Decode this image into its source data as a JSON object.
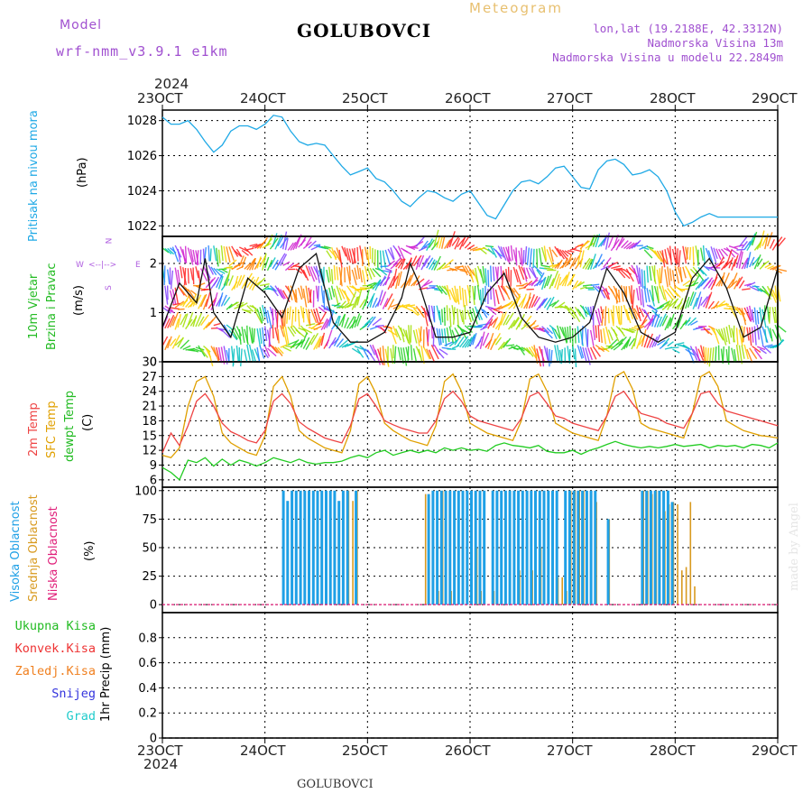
{
  "header": {
    "model_label": "Model",
    "model_name": "wrf-nmm_v3.9.1 e1km",
    "station": "GOLUBOVCI",
    "product": "Meteogram",
    "coords": "lon,lat (19.2188E, 42.3312N)",
    "elevation": "Nadmorska Visina 13m",
    "model_elevation": "Nadmorska Visina u modelu 22.2849m",
    "credit": "made by Angel",
    "footer_station": "GOLUBOVCI",
    "year": "2024"
  },
  "time_axis": {
    "ticks": [
      "23OCT",
      "24OCT",
      "25OCT",
      "26OCT",
      "27OCT",
      "28OCT",
      "29OCT"
    ],
    "start_hour": 0,
    "end_hour": 144
  },
  "colors": {
    "pressure": "#1fa9e6",
    "temp2m": "#ee4444",
    "sfc_temp": "#e0a000",
    "dewpoint": "#22cc22",
    "high_cloud": "#1fa0e6",
    "mid_cloud": "#d89a20",
    "low_cloud": "#e0207a",
    "total_rain": "#22bb22",
    "conv_rain": "#ee3333",
    "freezing_rain": "#f08020",
    "snow": "#3333dd",
    "hail": "#22cccc"
  },
  "chart_data": [
    {
      "type": "line",
      "panel": "pressure",
      "ylabel_lines": [
        "Pritisak na nivou mora",
        "(hPa)"
      ],
      "ylim": [
        1021.4,
        1028.6
      ],
      "yticks": [
        1022,
        1024,
        1026,
        1028
      ],
      "series": [
        {
          "x": [
            0,
            2,
            4,
            6,
            8,
            10,
            12,
            14,
            16,
            18,
            20,
            22,
            24,
            26,
            28,
            30,
            32,
            34,
            36,
            38,
            40,
            42,
            44,
            46,
            48,
            50,
            52,
            54,
            56,
            58,
            60,
            62,
            64,
            66,
            68,
            70,
            72,
            74,
            76,
            78,
            80,
            82,
            84,
            86,
            88,
            90,
            92,
            94,
            96,
            98,
            100,
            102,
            104,
            106,
            108,
            110,
            112,
            114,
            116,
            118,
            120,
            122,
            124,
            126,
            128,
            130,
            132,
            134,
            136,
            138,
            140,
            142,
            144
          ],
          "values": [
            1028.2,
            1027.8,
            1027.8,
            1028.0,
            1027.5,
            1026.8,
            1026.2,
            1026.6,
            1027.4,
            1027.7,
            1027.7,
            1027.5,
            1027.8,
            1028.3,
            1028.2,
            1027.4,
            1026.8,
            1026.6,
            1026.7,
            1026.6,
            1026.0,
            1025.4,
            1024.9,
            1025.1,
            1025.3,
            1024.7,
            1024.5,
            1024.0,
            1023.4,
            1023.1,
            1023.6,
            1024.0,
            1023.9,
            1023.6,
            1023.4,
            1023.8,
            1024.0,
            1023.3,
            1022.6,
            1022.4,
            1023.2,
            1024.0,
            1024.5,
            1024.6,
            1024.4,
            1024.8,
            1025.3,
            1025.4,
            1024.8,
            1024.2,
            1024.1,
            1025.2,
            1025.7,
            1025.8,
            1025.5,
            1024.9,
            1025.0,
            1025.2,
            1024.8,
            1024.0,
            1022.8,
            1022.0,
            1022.2,
            1022.5,
            1022.7,
            1022.5,
            1022.5,
            1022.5,
            1022.5,
            1022.5,
            1022.5,
            1022.5,
            1022.5
          ]
        }
      ]
    },
    {
      "type": "line",
      "panel": "wind",
      "ylabel_lines": [
        "10m Vjetar",
        "Brzina i Pravac",
        "(m/s)"
      ],
      "ylim": [
        0,
        2.55
      ],
      "yticks": [
        0,
        1,
        2
      ],
      "compass": [
        "N",
        "W",
        "E",
        "S"
      ],
      "series": [
        {
          "name": "speed",
          "x": [
            0,
            4,
            8,
            10,
            12,
            16,
            20,
            24,
            28,
            32,
            36,
            40,
            44,
            48,
            52,
            56,
            58,
            60,
            64,
            68,
            72,
            76,
            80,
            84,
            88,
            92,
            96,
            100,
            104,
            108,
            112,
            116,
            120,
            124,
            128,
            132,
            136,
            140,
            144
          ],
          "values": [
            0.7,
            1.6,
            1.2,
            2.1,
            1.0,
            0.5,
            1.7,
            1.4,
            0.9,
            1.9,
            2.2,
            0.8,
            0.4,
            0.4,
            0.6,
            1.3,
            2.0,
            1.6,
            0.5,
            0.5,
            0.6,
            1.4,
            1.8,
            0.9,
            0.5,
            0.4,
            0.5,
            0.8,
            1.9,
            1.4,
            0.6,
            0.4,
            0.6,
            1.7,
            2.1,
            1.5,
            0.5,
            0.7,
            1.9
          ]
        }
      ]
    },
    {
      "type": "line",
      "panel": "temperature",
      "ylabel_lines": [
        "2m Temp",
        "SFC Temp",
        "dewpt Temp",
        "(C)"
      ],
      "ylim": [
        4.5,
        30
      ],
      "yticks": [
        6,
        9,
        12,
        15,
        18,
        21,
        24,
        27,
        30
      ],
      "series": [
        {
          "name": "2m Temp",
          "x": [
            0,
            2,
            4,
            6,
            8,
            10,
            12,
            14,
            16,
            18,
            20,
            22,
            24,
            26,
            28,
            30,
            32,
            34,
            36,
            38,
            40,
            42,
            44,
            46,
            48,
            50,
            52,
            54,
            56,
            58,
            60,
            62,
            64,
            66,
            68,
            70,
            72,
            74,
            76,
            78,
            80,
            82,
            84,
            86,
            88,
            90,
            92,
            94,
            96,
            98,
            100,
            102,
            104,
            106,
            108,
            110,
            112,
            114,
            116,
            118,
            120,
            122,
            124,
            126,
            128,
            130,
            132,
            134,
            136,
            138,
            140,
            142,
            144
          ],
          "values": [
            11.5,
            15.5,
            13.0,
            17.0,
            22.0,
            23.5,
            21.0,
            17.5,
            15.8,
            15.0,
            14.0,
            13.5,
            16.0,
            22.0,
            23.5,
            21.5,
            17.8,
            16.5,
            15.5,
            14.5,
            14.0,
            13.5,
            17.0,
            22.5,
            23.5,
            21.0,
            18.0,
            17.2,
            16.5,
            16.0,
            15.5,
            15.5,
            18.0,
            22.5,
            24.0,
            22.0,
            19.0,
            18.0,
            17.5,
            17.0,
            16.5,
            16.0,
            18.5,
            23.0,
            23.8,
            21.5,
            19.0,
            18.5,
            17.5,
            17.0,
            16.5,
            16.0,
            19.0,
            23.0,
            24.0,
            21.5,
            19.5,
            19.0,
            18.5,
            17.5,
            17.0,
            16.5,
            19.5,
            23.5,
            24.0,
            21.5,
            20.0,
            19.5,
            19.0,
            18.5,
            18.0,
            17.5,
            17.0
          ]
        },
        {
          "name": "SFC Temp",
          "x": [
            0,
            2,
            4,
            6,
            8,
            10,
            12,
            14,
            16,
            18,
            20,
            22,
            24,
            26,
            28,
            30,
            32,
            34,
            36,
            38,
            40,
            42,
            44,
            46,
            48,
            50,
            52,
            54,
            56,
            58,
            60,
            62,
            64,
            66,
            68,
            70,
            72,
            74,
            76,
            78,
            80,
            82,
            84,
            86,
            88,
            90,
            92,
            94,
            96,
            98,
            100,
            102,
            104,
            106,
            108,
            110,
            112,
            114,
            116,
            118,
            120,
            122,
            124,
            126,
            128,
            130,
            132,
            134,
            136,
            138,
            140,
            142,
            144
          ],
          "values": [
            11.0,
            10.5,
            12.5,
            21.0,
            26.0,
            27.0,
            23.0,
            15.5,
            13.5,
            12.5,
            11.5,
            11.0,
            15.0,
            25.0,
            27.0,
            23.0,
            16.0,
            14.5,
            13.5,
            12.5,
            12.0,
            11.5,
            16.0,
            25.5,
            27.0,
            23.5,
            17.5,
            16.0,
            15.0,
            14.0,
            13.5,
            13.0,
            17.0,
            26.0,
            27.5,
            24.0,
            17.5,
            16.5,
            15.5,
            15.0,
            14.5,
            14.0,
            18.0,
            26.5,
            27.5,
            24.0,
            17.5,
            16.5,
            15.5,
            15.0,
            14.5,
            14.0,
            19.0,
            27.0,
            28.0,
            24.5,
            17.5,
            16.5,
            16.0,
            15.5,
            15.0,
            14.5,
            19.5,
            27.0,
            28.0,
            25.0,
            18.0,
            17.0,
            16.0,
            15.5,
            15.0,
            14.8,
            14.5
          ]
        },
        {
          "name": "dewpt Temp",
          "x": [
            0,
            2,
            4,
            6,
            8,
            10,
            12,
            14,
            16,
            18,
            20,
            22,
            24,
            26,
            28,
            30,
            32,
            34,
            36,
            38,
            40,
            42,
            44,
            46,
            48,
            50,
            52,
            54,
            56,
            58,
            60,
            62,
            64,
            66,
            68,
            70,
            72,
            74,
            76,
            78,
            80,
            82,
            84,
            86,
            88,
            90,
            92,
            94,
            96,
            98,
            100,
            102,
            104,
            106,
            108,
            110,
            112,
            114,
            116,
            118,
            120,
            122,
            124,
            126,
            128,
            130,
            132,
            134,
            136,
            138,
            140,
            142,
            144
          ],
          "values": [
            8.5,
            7.5,
            6.0,
            10.0,
            9.5,
            10.5,
            8.8,
            10.2,
            9.0,
            10.0,
            9.5,
            8.8,
            9.5,
            10.5,
            10.0,
            9.5,
            10.2,
            9.5,
            9.2,
            9.5,
            9.5,
            9.8,
            10.5,
            11.0,
            10.5,
            11.5,
            12.0,
            11.0,
            11.5,
            12.0,
            11.5,
            12.0,
            11.5,
            12.5,
            12.0,
            12.5,
            12.0,
            12.2,
            11.8,
            13.0,
            13.5,
            13.0,
            12.8,
            12.5,
            13.0,
            11.8,
            11.5,
            11.5,
            12.0,
            11.2,
            12.0,
            12.5,
            13.2,
            13.8,
            13.2,
            12.8,
            12.5,
            12.8,
            12.5,
            12.8,
            13.2,
            12.8,
            13.0,
            13.2,
            12.5,
            13.0,
            12.8,
            13.0,
            12.5,
            13.2,
            13.0,
            12.5,
            13.5
          ]
        }
      ]
    },
    {
      "type": "bar",
      "panel": "cloud",
      "ylabel_lines": [
        "Visoka Oblacnost",
        "Srednja Oblacnost",
        "Niska Oblacnost",
        "(%)"
      ],
      "ylim": [
        -7,
        103
      ],
      "yticks": [
        0,
        25,
        50,
        75,
        100
      ],
      "series": [
        {
          "name": "Visoka Oblacnost",
          "x": [
            28,
            29,
            30,
            31,
            32,
            33,
            34,
            35,
            36,
            37,
            38,
            39,
            40,
            41,
            42,
            43,
            45,
            62,
            63,
            64,
            65,
            66,
            67,
            68,
            69,
            70,
            71,
            72,
            73,
            74,
            75,
            77,
            78,
            79,
            80,
            81,
            82,
            83,
            84,
            85,
            86,
            87,
            88,
            89,
            90,
            91,
            92,
            94,
            95,
            96,
            97,
            98,
            99,
            100,
            101,
            104,
            112,
            113,
            114,
            115,
            116,
            117,
            118,
            119
          ],
          "values": [
            100,
            91,
            100,
            100,
            100,
            100,
            100,
            100,
            100,
            100,
            100,
            100,
            100,
            91,
            100,
            100,
            100,
            97,
            100,
            100,
            100,
            100,
            100,
            100,
            100,
            100,
            100,
            100,
            100,
            100,
            100,
            100,
            100,
            100,
            100,
            100,
            100,
            100,
            100,
            100,
            100,
            100,
            100,
            100,
            100,
            100,
            100,
            100,
            100,
            100,
            100,
            100,
            100,
            100,
            100,
            75,
            100,
            100,
            100,
            100,
            100,
            100,
            100,
            90
          ]
        },
        {
          "name": "Srednja Oblacnost",
          "x": [
            43,
            44,
            45,
            61,
            64,
            65,
            67,
            73,
            74,
            77,
            83,
            86,
            88,
            92,
            93,
            94,
            95,
            96,
            97,
            98,
            101,
            104,
            112,
            113,
            114,
            115,
            117,
            118,
            119,
            120,
            121,
            122,
            123,
            124
          ],
          "values": [
            100,
            91,
            100,
            97,
            12,
            100,
            12,
            50,
            12,
            12,
            30,
            30,
            50,
            24,
            24,
            12,
            100,
            100,
            100,
            100,
            90,
            75,
            100,
            100,
            97,
            100,
            82,
            88,
            90,
            88,
            30,
            33,
            90,
            16
          ]
        },
        {
          "name": "Niska Oblacnost",
          "x": [],
          "values": []
        }
      ]
    },
    {
      "type": "bar",
      "panel": "precip",
      "ylabel_lines": [
        "1hr Precip (mm)"
      ],
      "legend": [
        "Ukupna Kisa",
        "Konvek.Kisa",
        "Zaledj.Kisa",
        "Snijeg",
        "Grad"
      ],
      "ylim": [
        0,
        1.0
      ],
      "yticks": [
        0,
        0.2,
        0.4,
        0.6,
        0.8
      ],
      "series": [
        {
          "name": "Ukupna Kisa",
          "x": [],
          "values": []
        }
      ]
    }
  ]
}
